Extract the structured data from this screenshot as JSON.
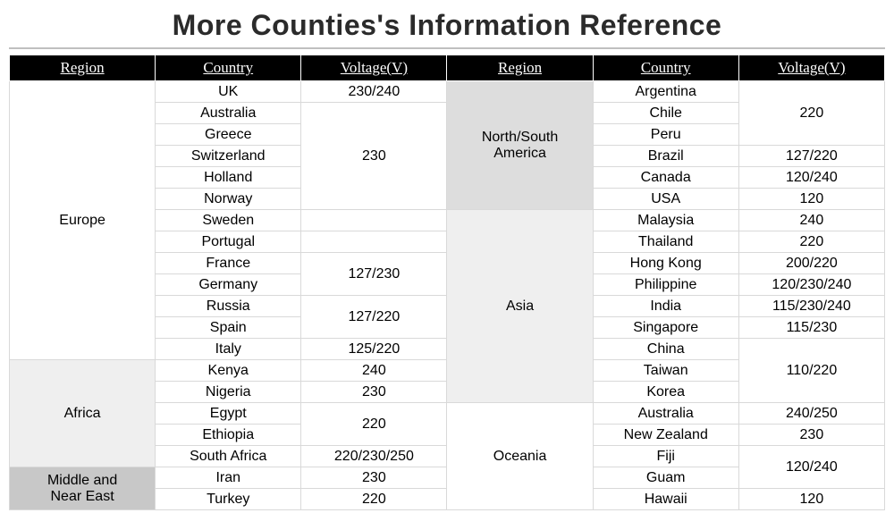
{
  "title": "More Counties's Information Reference",
  "headers": [
    "Region",
    "Country",
    "Voltage(V)",
    "Region",
    "Country",
    "Voltage(V)"
  ],
  "colors": {
    "header_bg": "#000000",
    "header_fg": "#ffffff",
    "border": "#d9d9d9",
    "region_white": "#ffffff",
    "region_light": "#efefef",
    "region_mid": "#dddddd",
    "region_dark": "#c8c8c8"
  },
  "left": {
    "regions": [
      {
        "name": "Europe",
        "shade": "white",
        "rowspan": 13
      },
      {
        "name": "Africa",
        "shade": "light",
        "rowspan": 5
      },
      {
        "name": "Middle and Near East",
        "shade": "dark",
        "rowspan": 2
      }
    ],
    "rows": [
      {
        "country": "UK",
        "voltage": "230/240"
      },
      {
        "country": "Australia",
        "voltage": "230",
        "voltage_rowspan": 5
      },
      {
        "country": "Greece"
      },
      {
        "country": "Switzerland"
      },
      {
        "country": "Holland"
      },
      {
        "country": "Norway"
      },
      {
        "country": "Sweden",
        "voltage": ""
      },
      {
        "country": "Portugal",
        "voltage": ""
      },
      {
        "country": "France",
        "voltage": "127/230",
        "voltage_rowspan": 2
      },
      {
        "country": "Germany"
      },
      {
        "country": "Russia",
        "voltage": "127/220",
        "voltage_rowspan": 2
      },
      {
        "country": "Spain"
      },
      {
        "country": "Italy",
        "voltage": "125/220"
      },
      {
        "country": "Kenya",
        "voltage": "240"
      },
      {
        "country": "Nigeria",
        "voltage": "230"
      },
      {
        "country": "Egypt",
        "voltage": "220",
        "voltage_rowspan": 2
      },
      {
        "country": "Ethiopia"
      },
      {
        "country": "South Africa",
        "voltage": "220/230/250"
      },
      {
        "country": "Iran",
        "voltage": "230"
      },
      {
        "country": "Turkey",
        "voltage": "220"
      }
    ]
  },
  "right": {
    "regions": [
      {
        "name": "North/South America",
        "shade": "mid",
        "rowspan": 6
      },
      {
        "name": "Asia",
        "shade": "light",
        "rowspan": 9
      },
      {
        "name": "Oceania",
        "shade": "white",
        "rowspan": 5
      }
    ],
    "rows": [
      {
        "country": "Argentina",
        "voltage": "220",
        "voltage_rowspan": 3
      },
      {
        "country": "Chile"
      },
      {
        "country": "Peru"
      },
      {
        "country": "Brazil",
        "voltage": "127/220"
      },
      {
        "country": "Canada",
        "voltage": "120/240"
      },
      {
        "country": "USA",
        "voltage": "120"
      },
      {
        "country": "Malaysia",
        "voltage": "240"
      },
      {
        "country": "Thailand",
        "voltage": "220"
      },
      {
        "country": "Hong Kong",
        "voltage": "200/220"
      },
      {
        "country": "Philippine",
        "voltage": "120/230/240"
      },
      {
        "country": "India",
        "voltage": "115/230/240"
      },
      {
        "country": "Singapore",
        "voltage": "115/230"
      },
      {
        "country": "China",
        "voltage": "110/220",
        "voltage_rowspan": 3
      },
      {
        "country": "Taiwan"
      },
      {
        "country": "Korea"
      },
      {
        "country": "Australia",
        "voltage": "240/250"
      },
      {
        "country": "New Zealand",
        "voltage": "230"
      },
      {
        "country": "Fiji",
        "voltage": "120/240",
        "voltage_rowspan": 2
      },
      {
        "country": "Guam"
      },
      {
        "country": "Hawaii",
        "voltage": "120"
      }
    ]
  }
}
